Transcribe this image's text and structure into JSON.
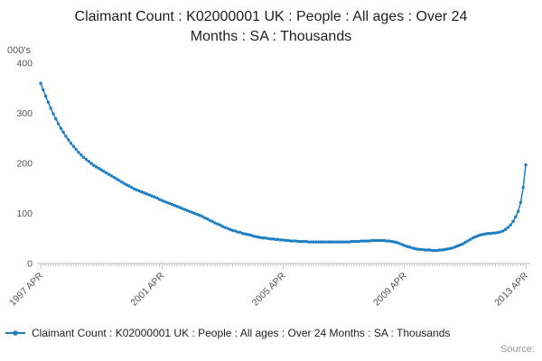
{
  "title": "Claimant Count : K02000001 UK : People : All ages : Over 24 Months : SA : Thousands",
  "y_axis_unit_label": "000's",
  "source_label": "Source:",
  "legend": {
    "series_label": "Claimant Count : K02000001 UK : People : All ages : Over 24 Months : SA : Thousands"
  },
  "colors": {
    "line": "#1e7ec3",
    "axis": "#bbbbbb",
    "tick_text": "#555555",
    "title_text": "#1f1f1f"
  },
  "chart_data": {
    "type": "line",
    "title": "Claimant Count : K02000001 UK : People : All ages : Over 24 Months : SA : Thousands",
    "xlabel": "",
    "ylabel": "000's",
    "ylim": [
      0,
      400
    ],
    "y_ticks": [
      0,
      100,
      200,
      300,
      400
    ],
    "x_start": "1997-04",
    "x_end": "2013-04",
    "frequency": "monthly",
    "x_tick_labels": [
      "1997 APR",
      "2001 APR",
      "2005 APR",
      "2009 APR",
      "2013 APR"
    ],
    "x_tick_month_indices": [
      0,
      48,
      96,
      144,
      192
    ],
    "grid": false,
    "markers": true,
    "legend_position": "bottom",
    "series": [
      {
        "name": "Claimant Count : K02000001 UK : People : All ages : Over 24 Months : SA : Thousands",
        "values": [
          360,
          347,
          334,
          322,
          310,
          299,
          289,
          279,
          270,
          262,
          254,
          247,
          240,
          234,
          228,
          222,
          217,
          212,
          208,
          204,
          200,
          196,
          193,
          190,
          187,
          184,
          181,
          178,
          175,
          172,
          169,
          166,
          163,
          160,
          157,
          155,
          152,
          149,
          147,
          145,
          143,
          141,
          139,
          137,
          135,
          133,
          131,
          128,
          126,
          124,
          122,
          120,
          118,
          116,
          114,
          112,
          110,
          108,
          106,
          104,
          102,
          100,
          98,
          96,
          94,
          91,
          89,
          86,
          84,
          81,
          79,
          77,
          74,
          72,
          70,
          68,
          66,
          65,
          63,
          62,
          60,
          59,
          58,
          57,
          55,
          54,
          53,
          52,
          51,
          51,
          50,
          49,
          49,
          48,
          48,
          47,
          47,
          46,
          46,
          45,
          45,
          45,
          44,
          44,
          44,
          44,
          43,
          43,
          43,
          43,
          43,
          43,
          43,
          43,
          43,
          43,
          43,
          43,
          43,
          43,
          43,
          43,
          43,
          44,
          44,
          44,
          44,
          45,
          45,
          45,
          45,
          46,
          46,
          46,
          46,
          46,
          46,
          45,
          45,
          44,
          43,
          42,
          40,
          38,
          36,
          34,
          33,
          31,
          30,
          29,
          28,
          28,
          27,
          27,
          27,
          26,
          26,
          26,
          27,
          27,
          28,
          29,
          30,
          31,
          33,
          35,
          37,
          39,
          42,
          45,
          48,
          51,
          53,
          55,
          57,
          58,
          59,
          60,
          60,
          61,
          61,
          62,
          63,
          65,
          68,
          72,
          77,
          84,
          93,
          104,
          122,
          152,
          197
        ]
      }
    ]
  }
}
